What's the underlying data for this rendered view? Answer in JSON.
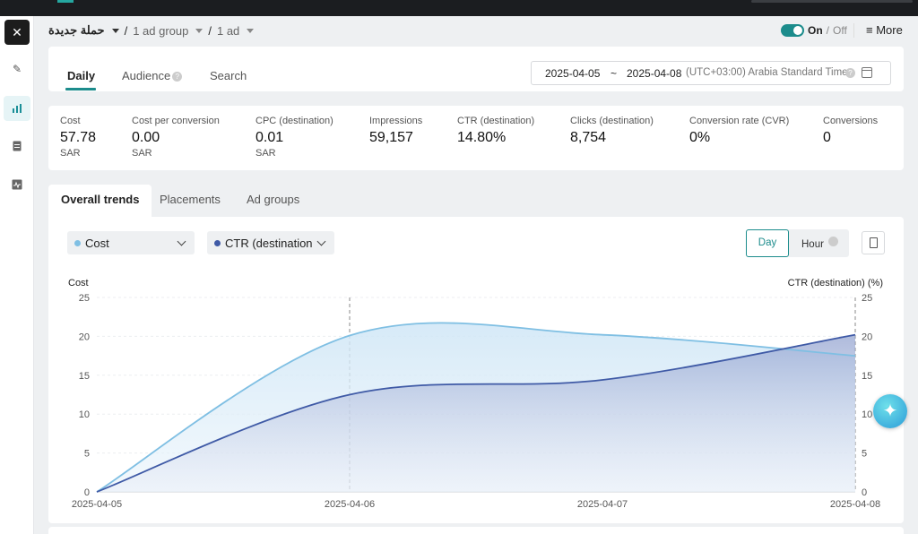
{
  "header": {
    "campaign": "حملة جديدة",
    "ad_group": "1 ad group",
    "ad": "1 ad",
    "sep": "/",
    "toggle_on": "On",
    "toggle_sep": "/",
    "toggle_off": "Off",
    "more": "≡ More"
  },
  "tabs": {
    "daily": "Daily",
    "audience": "Audience",
    "search": "Search"
  },
  "date_range": {
    "start": "2025-04-05",
    "sep": "~",
    "end": "2025-04-08",
    "timezone": "(UTC+03:00) Arabia Standard Time"
  },
  "metrics": [
    {
      "label": "Cost",
      "value": "57.78",
      "unit": "SAR"
    },
    {
      "label": "Cost per conversion",
      "value": "0.00",
      "unit": "SAR"
    },
    {
      "label": "CPC (destination)",
      "value": "0.01",
      "unit": "SAR"
    },
    {
      "label": "Impressions",
      "value": "59,157",
      "unit": ""
    },
    {
      "label": "CTR (destination)",
      "value": "14.80%",
      "unit": ""
    },
    {
      "label": "Clicks (destination)",
      "value": "8,754",
      "unit": ""
    },
    {
      "label": "Conversion rate (CVR)",
      "value": "0%",
      "unit": ""
    },
    {
      "label": "Conversions",
      "value": "0",
      "unit": ""
    }
  ],
  "trend_tabs": {
    "overall": "Overall trends",
    "placements": "Placements",
    "ad_groups": "Ad groups"
  },
  "chart_controls": {
    "metric1": "Cost",
    "metric2": "CTR (destination",
    "day": "Day",
    "hour": "Hour"
  },
  "colors": {
    "accent": "#1c8c8c",
    "cost": "#7fbfe3",
    "ctr": "#3f5aa6"
  },
  "chart_data": {
    "type": "area",
    "x": [
      "2025-04-05",
      "2025-04-06",
      "2025-04-07",
      "2025-04-08"
    ],
    "ylabel_left": "Cost",
    "ylabel_right": "CTR (destination) (%)",
    "ylim_left": [
      0,
      25
    ],
    "ylim_right": [
      0,
      25
    ],
    "yticks": [
      0,
      5,
      10,
      15,
      20,
      25
    ],
    "grid": true,
    "series": [
      {
        "name": "Cost",
        "axis": "left",
        "values": [
          0,
          20.1,
          20.2,
          17.5
        ]
      },
      {
        "name": "CTR (destination)",
        "axis": "right",
        "values": [
          0,
          12.5,
          14.4,
          20.2
        ]
      }
    ]
  }
}
